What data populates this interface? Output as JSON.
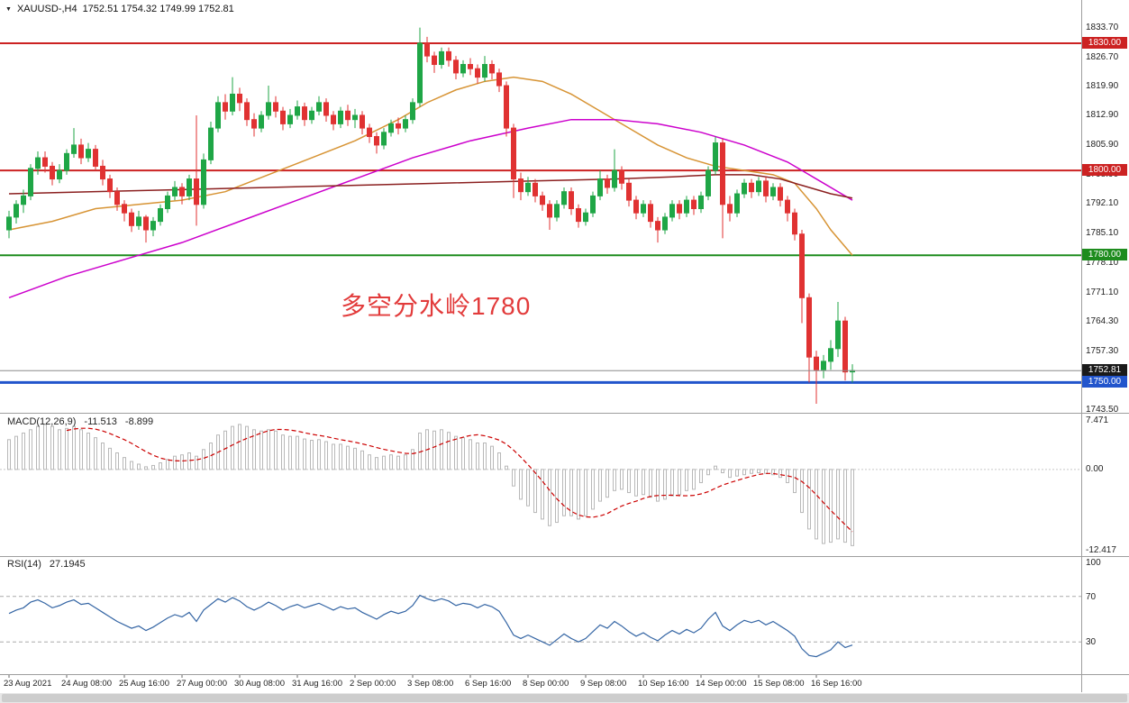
{
  "titlebar": {
    "symbol": "XAUUSD-,H4",
    "ohlc": "1752.51 1754.32 1749.99 1752.81"
  },
  "annotation": {
    "text": "多空分水岭1780",
    "color": "#e23b3b"
  },
  "indicators": {
    "macd": {
      "label": "MACD(12,26,9)",
      "value": "-11.513",
      "signal": "-8.899",
      "axis_labels": [
        "7.471",
        "0.00",
        "-12.417"
      ]
    },
    "rsi": {
      "label": "RSI(14)",
      "value": "27.1945",
      "axis_labels": [
        "100",
        "70",
        "30"
      ]
    }
  },
  "price_axis": {
    "tick_labels": [
      "1833.70",
      "1826.70",
      "1819.90",
      "1812.90",
      "1805.90",
      "1798.90",
      "1792.10",
      "1785.10",
      "1778.10",
      "1771.10",
      "1764.30",
      "1757.30",
      "1743.50"
    ],
    "badges": [
      {
        "label": "1830.00",
        "price": 1830.0,
        "bg": "#cc2222"
      },
      {
        "label": "1800.00",
        "price": 1800.0,
        "bg": "#cc2222"
      },
      {
        "label": "1780.00",
        "price": 1780.0,
        "bg": "#1e8c1e"
      },
      {
        "label": "1752.81",
        "price": 1752.81,
        "bg": "#1a1a1a"
      },
      {
        "label": "1750.00",
        "price": 1750.0,
        "bg": "#2255cc"
      }
    ]
  },
  "time_axis": {
    "labels": [
      "23 Aug 2021",
      "24 Aug 08:00",
      "25 Aug 16:00",
      "27 Aug 00:00",
      "30 Aug 08:00",
      "31 Aug 16:00",
      "2 Sep 00:00",
      "3 Sep 08:00",
      "6 Sep 16:00",
      "8 Sep 00:00",
      "9 Sep 08:00",
      "10 Sep 16:00",
      "14 Sep 00:00",
      "15 Sep 08:00",
      "16 Sep 16:00"
    ]
  },
  "chart_data": {
    "type": "candlestick",
    "symbol": "XAUUSD",
    "timeframe": "H4",
    "ylim": [
      1743.5,
      1838.5
    ],
    "x_labels": [
      "23 Aug 2021",
      "24 Aug 08:00",
      "25 Aug 16:00",
      "27 Aug 00:00",
      "30 Aug 08:00",
      "31 Aug 16:00",
      "2 Sep 00:00",
      "3 Sep 08:00",
      "6 Sep 16:00",
      "8 Sep 00:00",
      "9 Sep 08:00",
      "10 Sep 16:00",
      "14 Sep 00:00",
      "15 Sep 08:00",
      "16 Sep 16:00"
    ],
    "candles_per_label": 8,
    "colors": {
      "up": "#1fa646",
      "down": "#e03232"
    },
    "ohlc": [
      [
        1786.0,
        1790.5,
        1784.0,
        1789.0
      ],
      [
        1789.0,
        1793.0,
        1787.5,
        1792.0
      ],
      [
        1792.0,
        1795.5,
        1790.0,
        1794.0
      ],
      [
        1794.0,
        1801.5,
        1793.0,
        1800.5
      ],
      [
        1800.5,
        1804.5,
        1799.0,
        1803.0
      ],
      [
        1803.0,
        1804.5,
        1799.5,
        1801.0
      ],
      [
        1801.0,
        1802.0,
        1796.5,
        1798.0
      ],
      [
        1798.0,
        1801.5,
        1797.0,
        1800.0
      ],
      [
        1800.0,
        1805.0,
        1799.0,
        1804.0
      ],
      [
        1804.0,
        1810.0,
        1803.0,
        1806.0
      ],
      [
        1806.0,
        1807.5,
        1801.5,
        1803.0
      ],
      [
        1803.0,
        1806.5,
        1802.0,
        1805.0
      ],
      [
        1805.0,
        1806.0,
        1800.0,
        1801.0
      ],
      [
        1801.0,
        1802.5,
        1796.5,
        1798.0
      ],
      [
        1798.0,
        1799.0,
        1793.5,
        1795.0
      ],
      [
        1795.0,
        1796.0,
        1790.5,
        1792.0
      ],
      [
        1792.0,
        1793.0,
        1788.0,
        1790.0
      ],
      [
        1790.0,
        1791.0,
        1785.5,
        1787.0
      ],
      [
        1787.0,
        1790.5,
        1786.0,
        1789.0
      ],
      [
        1789.0,
        1789.5,
        1783.0,
        1786.0
      ],
      [
        1786.0,
        1789.0,
        1784.5,
        1788.0
      ],
      [
        1788.0,
        1792.0,
        1787.0,
        1791.0
      ],
      [
        1791.0,
        1795.0,
        1790.0,
        1794.0
      ],
      [
        1794.0,
        1797.5,
        1793.0,
        1796.0
      ],
      [
        1796.0,
        1797.0,
        1792.0,
        1794.0
      ],
      [
        1794.0,
        1799.0,
        1793.0,
        1798.0
      ],
      [
        1798.0,
        1813.0,
        1787.0,
        1792.0
      ],
      [
        1792.0,
        1804.0,
        1791.0,
        1802.5
      ],
      [
        1802.5,
        1811.5,
        1801.5,
        1810.0
      ],
      [
        1810.0,
        1817.5,
        1809.0,
        1816.0
      ],
      [
        1816.0,
        1818.0,
        1812.0,
        1814.0
      ],
      [
        1814.0,
        1822.0,
        1813.0,
        1818.0
      ],
      [
        1818.0,
        1819.5,
        1814.0,
        1816.0
      ],
      [
        1816.0,
        1817.0,
        1810.5,
        1812.0
      ],
      [
        1812.0,
        1813.5,
        1808.0,
        1810.0
      ],
      [
        1810.0,
        1814.0,
        1809.0,
        1813.0
      ],
      [
        1813.0,
        1820.0,
        1812.0,
        1816.0
      ],
      [
        1816.0,
        1817.5,
        1812.5,
        1814.0
      ],
      [
        1814.0,
        1815.0,
        1809.5,
        1811.0
      ],
      [
        1811.0,
        1814.5,
        1810.0,
        1813.0
      ],
      [
        1813.0,
        1816.5,
        1812.0,
        1815.0
      ],
      [
        1815.0,
        1816.0,
        1810.5,
        1812.0
      ],
      [
        1812.0,
        1815.0,
        1811.0,
        1814.0
      ],
      [
        1814.0,
        1817.5,
        1813.0,
        1816.0
      ],
      [
        1816.0,
        1817.0,
        1811.5,
        1813.0
      ],
      [
        1813.0,
        1814.0,
        1809.5,
        1811.0
      ],
      [
        1811.0,
        1815.0,
        1810.0,
        1814.0
      ],
      [
        1814.0,
        1815.5,
        1810.5,
        1812.0
      ],
      [
        1812.0,
        1814.5,
        1810.0,
        1813.0
      ],
      [
        1813.0,
        1814.0,
        1808.5,
        1810.0
      ],
      [
        1810.0,
        1811.0,
        1806.5,
        1808.0
      ],
      [
        1808.0,
        1809.0,
        1804.0,
        1806.0
      ],
      [
        1806.0,
        1810.0,
        1805.0,
        1809.0
      ],
      [
        1809.0,
        1812.0,
        1808.0,
        1811.0
      ],
      [
        1811.0,
        1812.5,
        1808.5,
        1810.0
      ],
      [
        1810.0,
        1813.0,
        1809.0,
        1812.0
      ],
      [
        1812.0,
        1817.0,
        1811.0,
        1816.0
      ],
      [
        1816.0,
        1833.7,
        1815.0,
        1830.0
      ],
      [
        1830.0,
        1831.5,
        1825.5,
        1827.0
      ],
      [
        1827.0,
        1828.0,
        1823.0,
        1825.0
      ],
      [
        1825.0,
        1829.0,
        1824.0,
        1828.0
      ],
      [
        1828.0,
        1829.0,
        1824.5,
        1826.0
      ],
      [
        1826.0,
        1827.0,
        1821.5,
        1823.0
      ],
      [
        1823.0,
        1826.0,
        1822.0,
        1825.0
      ],
      [
        1825.0,
        1826.5,
        1822.5,
        1824.0
      ],
      [
        1824.0,
        1825.0,
        1820.5,
        1822.0
      ],
      [
        1822.0,
        1827.0,
        1821.0,
        1825.0
      ],
      [
        1825.0,
        1826.0,
        1821.5,
        1823.0
      ],
      [
        1823.0,
        1824.0,
        1818.5,
        1820.0
      ],
      [
        1820.0,
        1821.0,
        1808.0,
        1810.0
      ],
      [
        1810.0,
        1811.0,
        1793.5,
        1798.0
      ],
      [
        1798.0,
        1799.5,
        1793.0,
        1795.0
      ],
      [
        1795.0,
        1798.5,
        1794.0,
        1797.0
      ],
      [
        1797.0,
        1798.0,
        1792.5,
        1794.0
      ],
      [
        1794.0,
        1795.0,
        1790.5,
        1792.0
      ],
      [
        1792.0,
        1793.0,
        1786.0,
        1789.0
      ],
      [
        1789.0,
        1793.0,
        1788.0,
        1792.0
      ],
      [
        1792.0,
        1796.0,
        1791.0,
        1795.0
      ],
      [
        1795.0,
        1796.0,
        1789.5,
        1791.0
      ],
      [
        1791.0,
        1792.0,
        1786.5,
        1788.0
      ],
      [
        1788.0,
        1791.0,
        1787.0,
        1790.0
      ],
      [
        1790.0,
        1795.0,
        1789.0,
        1794.0
      ],
      [
        1794.0,
        1800.0,
        1793.0,
        1798.0
      ],
      [
        1798.0,
        1799.0,
        1794.5,
        1796.0
      ],
      [
        1796.0,
        1805.0,
        1795.0,
        1800.0
      ],
      [
        1800.0,
        1801.0,
        1795.5,
        1797.0
      ],
      [
        1797.0,
        1798.0,
        1791.5,
        1793.0
      ],
      [
        1793.0,
        1794.0,
        1788.5,
        1790.0
      ],
      [
        1790.0,
        1793.0,
        1789.0,
        1792.0
      ],
      [
        1792.0,
        1793.0,
        1786.5,
        1788.0
      ],
      [
        1788.0,
        1789.0,
        1783.0,
        1786.0
      ],
      [
        1786.0,
        1790.0,
        1785.0,
        1789.0
      ],
      [
        1789.0,
        1793.0,
        1788.0,
        1792.0
      ],
      [
        1792.0,
        1793.0,
        1788.5,
        1790.0
      ],
      [
        1790.0,
        1794.0,
        1789.0,
        1793.0
      ],
      [
        1793.0,
        1794.0,
        1789.5,
        1791.0
      ],
      [
        1791.0,
        1795.0,
        1790.0,
        1794.0
      ],
      [
        1794.0,
        1801.0,
        1793.0,
        1800.0
      ],
      [
        1800.0,
        1808.0,
        1799.0,
        1806.5
      ],
      [
        1806.5,
        1807.5,
        1784.0,
        1792.0
      ],
      [
        1792.0,
        1794.0,
        1788.0,
        1790.0
      ],
      [
        1790.0,
        1795.5,
        1789.0,
        1794.5
      ],
      [
        1794.5,
        1798.0,
        1793.5,
        1797.0
      ],
      [
        1797.0,
        1798.0,
        1793.5,
        1795.0
      ],
      [
        1795.0,
        1798.5,
        1794.0,
        1797.5
      ],
      [
        1797.5,
        1798.5,
        1792.5,
        1794.0
      ],
      [
        1794.0,
        1797.0,
        1793.0,
        1796.0
      ],
      [
        1796.0,
        1797.0,
        1791.5,
        1793.0
      ],
      [
        1793.0,
        1794.0,
        1788.0,
        1790.0
      ],
      [
        1790.0,
        1791.0,
        1783.5,
        1785.0
      ],
      [
        1785.0,
        1786.0,
        1764.0,
        1770.0
      ],
      [
        1770.0,
        1771.0,
        1750.0,
        1756.0
      ],
      [
        1756.0,
        1757.5,
        1745.0,
        1753.0
      ],
      [
        1753.0,
        1756.5,
        1751.0,
        1755.0
      ],
      [
        1755.0,
        1760.0,
        1753.0,
        1758.0
      ],
      [
        1758.0,
        1769.0,
        1756.0,
        1764.5
      ],
      [
        1764.5,
        1765.5,
        1750.5,
        1752.5
      ],
      [
        1752.51,
        1754.32,
        1749.99,
        1752.81
      ]
    ],
    "overlays": {
      "hlines": [
        {
          "price": 1830.0,
          "color": "#cc2222",
          "width": 2
        },
        {
          "price": 1800.0,
          "color": "#cc2222",
          "width": 2
        },
        {
          "price": 1780.0,
          "color": "#1e8c1e",
          "width": 2
        },
        {
          "price": 1750.0,
          "color": "#2255cc",
          "width": 3
        }
      ],
      "current_price": {
        "value": 1752.81,
        "color": "#8a8a8a"
      },
      "moving_averages": [
        {
          "name": "ma-orange",
          "color": "#d79435",
          "points": [
            [
              0,
              1786
            ],
            [
              6,
              1788
            ],
            [
              12,
              1791
            ],
            [
              18,
              1792
            ],
            [
              24,
              1793
            ],
            [
              30,
              1795
            ],
            [
              36,
              1799
            ],
            [
              42,
              1803
            ],
            [
              48,
              1807
            ],
            [
              54,
              1812
            ],
            [
              58,
              1816
            ],
            [
              62,
              1819
            ],
            [
              66,
              1821
            ],
            [
              70,
              1822
            ],
            [
              74,
              1821
            ],
            [
              78,
              1818
            ],
            [
              82,
              1814
            ],
            [
              86,
              1810
            ],
            [
              90,
              1806
            ],
            [
              94,
              1803
            ],
            [
              98,
              1801
            ],
            [
              102,
              1800
            ],
            [
              106,
              1799
            ],
            [
              109,
              1797
            ],
            [
              112,
              1791
            ],
            [
              114,
              1786
            ],
            [
              117,
              1780
            ]
          ]
        },
        {
          "name": "ma-magenta",
          "color": "#cc00cc",
          "points": [
            [
              0,
              1770
            ],
            [
              8,
              1775
            ],
            [
              16,
              1779
            ],
            [
              24,
              1783
            ],
            [
              32,
              1788
            ],
            [
              40,
              1793
            ],
            [
              48,
              1798
            ],
            [
              56,
              1803
            ],
            [
              64,
              1807
            ],
            [
              72,
              1810
            ],
            [
              78,
              1812
            ],
            [
              84,
              1812
            ],
            [
              90,
              1811
            ],
            [
              96,
              1809
            ],
            [
              102,
              1806
            ],
            [
              108,
              1802
            ],
            [
              112,
              1798
            ],
            [
              117,
              1793
            ]
          ]
        },
        {
          "name": "ma-darkred",
          "color": "#8b2020",
          "points": [
            [
              0,
              1794.5
            ],
            [
              12,
              1795
            ],
            [
              24,
              1795.5
            ],
            [
              36,
              1796
            ],
            [
              48,
              1796.5
            ],
            [
              60,
              1797
            ],
            [
              72,
              1797.5
            ],
            [
              84,
              1798
            ],
            [
              92,
              1798.5
            ],
            [
              98,
              1799
            ],
            [
              103,
              1799
            ],
            [
              107,
              1798
            ],
            [
              110,
              1796.5
            ],
            [
              114,
              1794.5
            ],
            [
              117,
              1793.5
            ]
          ]
        }
      ]
    },
    "macd": {
      "ylim": [
        -12.417,
        7.471
      ],
      "signal_period": 9,
      "histogram_color": "#b8b8b8",
      "signal_color": "#cc0000",
      "histogram": [
        4.5,
        5.0,
        5.5,
        6.0,
        6.5,
        6.8,
        6.5,
        6.0,
        6.2,
        6.5,
        6.0,
        5.5,
        4.8,
        4.0,
        3.2,
        2.5,
        1.8,
        1.2,
        0.8,
        0.4,
        0.6,
        1.0,
        1.5,
        2.0,
        2.2,
        2.5,
        2.0,
        3.0,
        4.0,
        5.2,
        5.8,
        6.5,
        6.8,
        6.5,
        6.0,
        5.8,
        6.0,
        5.8,
        5.2,
        5.0,
        5.0,
        4.6,
        4.4,
        4.5,
        4.2,
        3.8,
        3.8,
        3.5,
        3.2,
        2.8,
        2.2,
        1.8,
        2.0,
        2.2,
        2.0,
        2.2,
        3.0,
        5.5,
        6.0,
        5.8,
        6.0,
        5.6,
        5.0,
        4.8,
        4.5,
        4.0,
        4.0,
        3.5,
        2.5,
        0.5,
        -2.5,
        -4.5,
        -5.5,
        -6.5,
        -7.5,
        -8.5,
        -8.0,
        -7.0,
        -7.0,
        -7.5,
        -7.0,
        -6.0,
        -4.8,
        -4.2,
        -3.2,
        -3.0,
        -3.5,
        -4.0,
        -3.8,
        -4.2,
        -4.8,
        -4.5,
        -4.0,
        -3.8,
        -3.2,
        -3.0,
        -2.0,
        -0.8,
        0.5,
        -0.5,
        -1.2,
        -1.0,
        -0.8,
        -0.6,
        -0.5,
        -0.6,
        -0.8,
        -1.2,
        -2.0,
        -3.5,
        -6.5,
        -9.0,
        -10.5,
        -11.2,
        -11.0,
        -10.5,
        -11.0,
        -11.513
      ]
    },
    "rsi": {
      "ylim": [
        0,
        100
      ],
      "levels": [
        70,
        30
      ],
      "color": "#3465a4",
      "values": [
        55,
        58,
        60,
        65,
        67,
        64,
        60,
        62,
        65,
        67,
        63,
        64,
        60,
        56,
        52,
        48,
        45,
        42,
        44,
        40,
        43,
        47,
        51,
        54,
        52,
        56,
        48,
        58,
        63,
        68,
        65,
        69,
        66,
        61,
        58,
        61,
        65,
        62,
        58,
        61,
        63,
        60,
        62,
        64,
        61,
        58,
        61,
        59,
        60,
        56,
        53,
        50,
        54,
        57,
        55,
        57,
        62,
        71,
        68,
        66,
        68,
        66,
        62,
        64,
        63,
        60,
        63,
        61,
        57,
        47,
        36,
        33,
        36,
        33,
        30,
        27,
        32,
        37,
        33,
        30,
        33,
        39,
        45,
        42,
        48,
        44,
        39,
        35,
        38,
        34,
        31,
        36,
        40,
        37,
        41,
        38,
        42,
        50,
        56,
        44,
        40,
        45,
        49,
        47,
        49,
        45,
        48,
        44,
        40,
        35,
        24,
        18,
        17,
        20,
        23,
        30,
        25,
        27.1945
      ]
    }
  }
}
